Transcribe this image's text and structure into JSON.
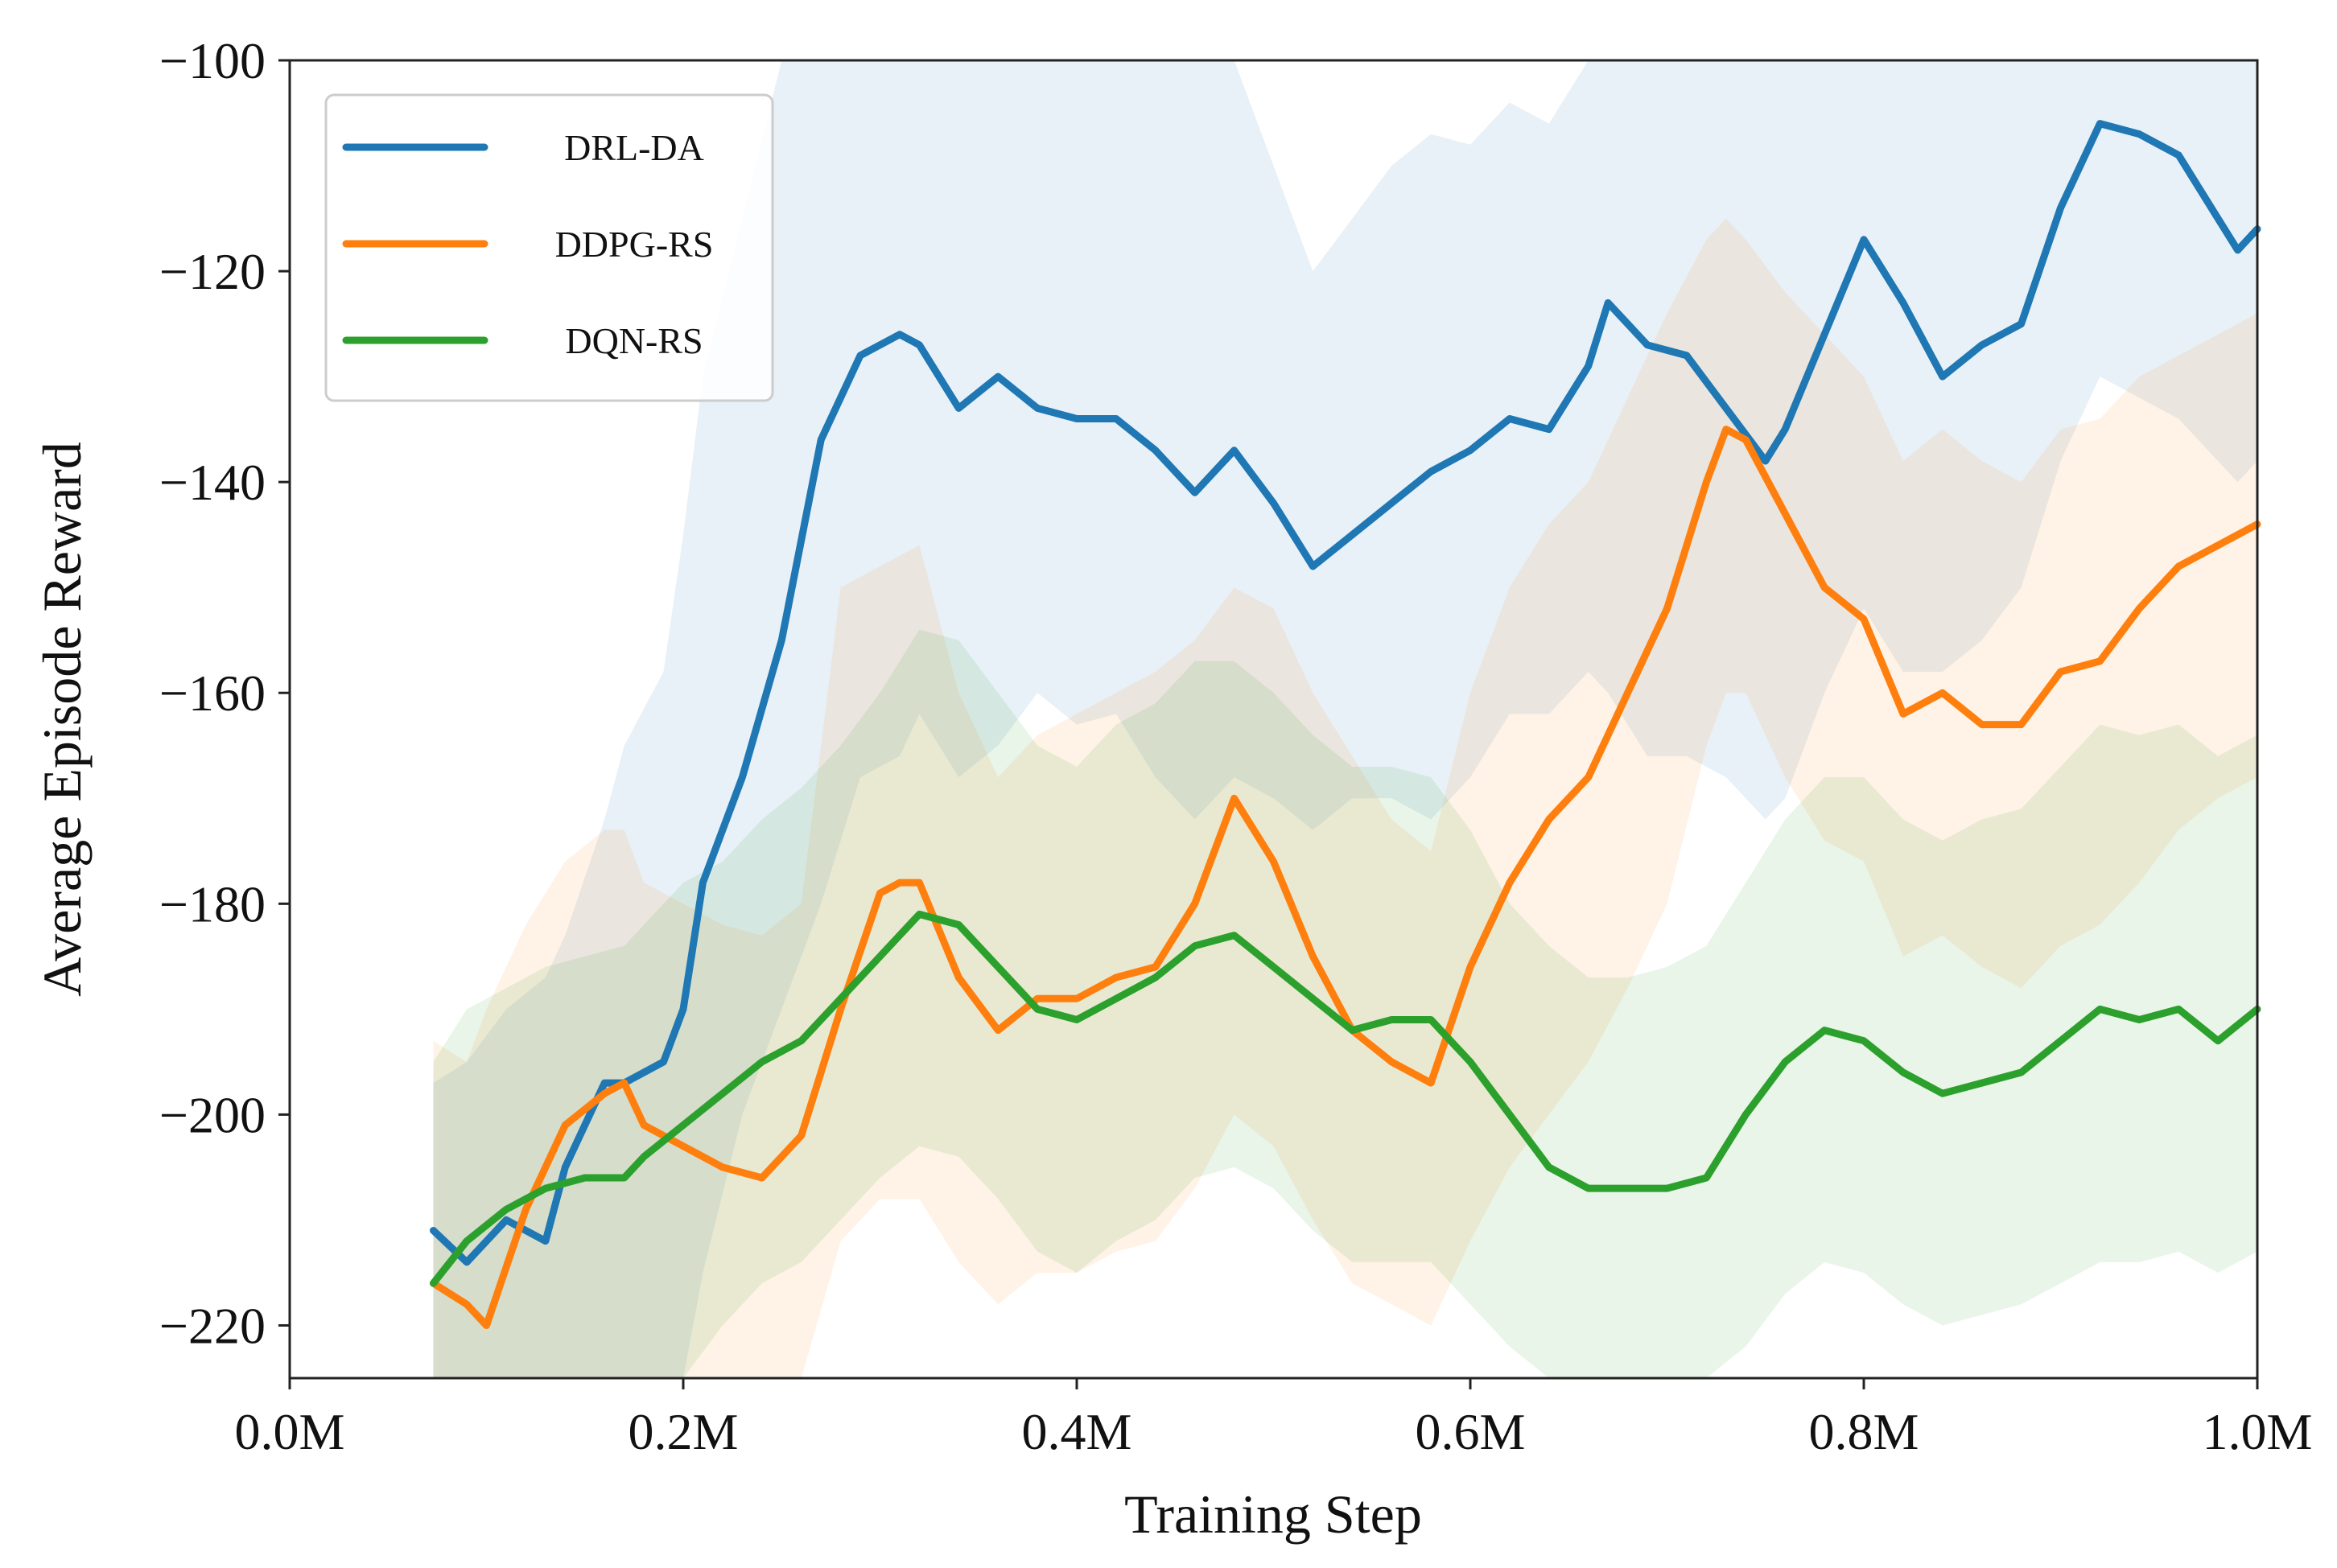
{
  "chart_data": {
    "type": "line",
    "title": "",
    "xlabel": "Training Step",
    "ylabel": "Average Episode Reward",
    "xlim": [
      0.0,
      1.0
    ],
    "ylim": [
      -225,
      -100
    ],
    "x_unit": "M",
    "xticks": [
      0.0,
      0.2,
      0.4,
      0.6,
      0.8,
      1.0
    ],
    "xtick_labels": [
      "0.0M",
      "0.2M",
      "0.4M",
      "0.6M",
      "0.8M",
      "1.0M"
    ],
    "yticks": [
      -100,
      -120,
      -140,
      -160,
      -180,
      -200,
      -220
    ],
    "ytick_labels": [
      "−100",
      "−120",
      "−140",
      "−160",
      "−180",
      "−200",
      "−220"
    ],
    "grid": false,
    "legend_position": "top-left",
    "series": [
      {
        "name": "DRL-DA",
        "color": "#1f77b4",
        "x": [
          0.073,
          0.09,
          0.11,
          0.13,
          0.14,
          0.16,
          0.17,
          0.19,
          0.2,
          0.21,
          0.23,
          0.25,
          0.27,
          0.29,
          0.31,
          0.32,
          0.34,
          0.36,
          0.38,
          0.4,
          0.42,
          0.44,
          0.46,
          0.48,
          0.5,
          0.52,
          0.54,
          0.56,
          0.58,
          0.6,
          0.62,
          0.64,
          0.66,
          0.67,
          0.69,
          0.71,
          0.73,
          0.75,
          0.76,
          0.78,
          0.8,
          0.82,
          0.84,
          0.86,
          0.88,
          0.9,
          0.92,
          0.94,
          0.96,
          0.98,
          0.99,
          1.0
        ],
        "values": [
          -211,
          -214,
          -210,
          -212,
          -205,
          -197,
          -197,
          -195,
          -190,
          -178,
          -168,
          -155,
          -136,
          -128,
          -126,
          -127,
          -133,
          -130,
          -133,
          -134,
          -134,
          -137,
          -141,
          -137,
          -142,
          -148,
          -145,
          -142,
          -139,
          -137,
          -134,
          -135,
          -129,
          -123,
          -127,
          -128,
          -133,
          -138,
          -135,
          -126,
          -117,
          -123,
          -130,
          -127,
          -125,
          -114,
          -106,
          -107,
          -109,
          -115,
          -118,
          -116
        ],
        "band_upper": [
          -197,
          -195,
          -190,
          -187,
          -183,
          -172,
          -165,
          -158,
          -145,
          -130,
          -115,
          -100,
          -100,
          -100,
          -100,
          -100,
          -100,
          -100,
          -100,
          -100,
          -100,
          -100,
          -100,
          -100,
          -110,
          -120,
          -115,
          -110,
          -107,
          -108,
          -104,
          -106,
          -100,
          -100,
          -100,
          -100,
          -100,
          -100,
          -100,
          -100,
          -100,
          -100,
          -100,
          -100,
          -100,
          -100,
          -100,
          -100,
          -100,
          -100,
          -100,
          -100
        ],
        "band_lower": [
          -225,
          -225,
          -225,
          -225,
          -225,
          -225,
          -225,
          -225,
          -225,
          -215,
          -200,
          -190,
          -180,
          -168,
          -166,
          -162,
          -168,
          -165,
          -160,
          -163,
          -162,
          -168,
          -172,
          -168,
          -170,
          -173,
          -170,
          -170,
          -172,
          -168,
          -162,
          -162,
          -158,
          -160,
          -166,
          -166,
          -168,
          -172,
          -170,
          -160,
          -152,
          -158,
          -158,
          -155,
          -150,
          -138,
          -130,
          -132,
          -134,
          -138,
          -140,
          -138
        ]
      },
      {
        "name": "DDPG-RS",
        "color": "#ff7f0e",
        "x": [
          0.073,
          0.09,
          0.1,
          0.12,
          0.14,
          0.16,
          0.17,
          0.18,
          0.2,
          0.22,
          0.24,
          0.26,
          0.28,
          0.3,
          0.31,
          0.32,
          0.34,
          0.36,
          0.38,
          0.4,
          0.42,
          0.44,
          0.46,
          0.48,
          0.5,
          0.52,
          0.54,
          0.56,
          0.58,
          0.6,
          0.62,
          0.64,
          0.66,
          0.68,
          0.7,
          0.72,
          0.73,
          0.74,
          0.76,
          0.78,
          0.8,
          0.82,
          0.84,
          0.86,
          0.88,
          0.9,
          0.92,
          0.94,
          0.96,
          0.98,
          1.0
        ],
        "values": [
          -216,
          -218,
          -220,
          -209,
          -201,
          -198,
          -197,
          -201,
          -203,
          -205,
          -206,
          -202,
          -190,
          -179,
          -178,
          -178,
          -187,
          -192,
          -189,
          -189,
          -187,
          -186,
          -180,
          -170,
          -176,
          -185,
          -192,
          -195,
          -197,
          -186,
          -178,
          -172,
          -168,
          -160,
          -152,
          -140,
          -135,
          -136,
          -143,
          -150,
          -153,
          -162,
          -160,
          -163,
          -163,
          -158,
          -157,
          -152,
          -148,
          -146,
          -144
        ],
        "band_upper": [
          -193,
          -195,
          -190,
          -182,
          -176,
          -173,
          -173,
          -178,
          -180,
          -182,
          -183,
          -180,
          -150,
          -148,
          -147,
          -146,
          -160,
          -168,
          -164,
          -162,
          -160,
          -158,
          -155,
          -150,
          -152,
          -160,
          -166,
          -172,
          -175,
          -160,
          -150,
          -144,
          -140,
          -132,
          -124,
          -117,
          -115,
          -117,
          -122,
          -126,
          -130,
          -138,
          -135,
          -138,
          -140,
          -135,
          -134,
          -130,
          -128,
          -126,
          -124
        ],
        "band_lower": [
          -225,
          -225,
          -225,
          -225,
          -225,
          -225,
          -225,
          -225,
          -225,
          -225,
          -225,
          -225,
          -212,
          -208,
          -208,
          -208,
          -214,
          -218,
          -215,
          -215,
          -213,
          -212,
          -207,
          -200,
          -203,
          -210,
          -216,
          -218,
          -220,
          -212,
          -205,
          -200,
          -195,
          -188,
          -180,
          -165,
          -160,
          -160,
          -168,
          -174,
          -176,
          -185,
          -183,
          -186,
          -188,
          -184,
          -182,
          -178,
          -173,
          -170,
          -168
        ]
      },
      {
        "name": "DQN-RS",
        "color": "#2ca02c",
        "x": [
          0.073,
          0.09,
          0.11,
          0.13,
          0.15,
          0.17,
          0.18,
          0.2,
          0.22,
          0.24,
          0.26,
          0.28,
          0.3,
          0.32,
          0.34,
          0.36,
          0.38,
          0.4,
          0.42,
          0.44,
          0.46,
          0.48,
          0.5,
          0.52,
          0.54,
          0.56,
          0.58,
          0.6,
          0.62,
          0.64,
          0.66,
          0.68,
          0.7,
          0.72,
          0.74,
          0.76,
          0.78,
          0.8,
          0.82,
          0.84,
          0.86,
          0.88,
          0.9,
          0.92,
          0.94,
          0.96,
          0.98,
          1.0
        ],
        "values": [
          -216,
          -212,
          -209,
          -207,
          -206,
          -206,
          -204,
          -201,
          -198,
          -195,
          -193,
          -189,
          -185,
          -181,
          -182,
          -186,
          -190,
          -191,
          -189,
          -187,
          -184,
          -183,
          -186,
          -189,
          -192,
          -191,
          -191,
          -195,
          -200,
          -205,
          -207,
          -207,
          -207,
          -206,
          -200,
          -195,
          -192,
          -193,
          -196,
          -198,
          -197,
          -196,
          -193,
          -190,
          -191,
          -190,
          -193,
          -190
        ],
        "band_upper": [
          -195,
          -190,
          -188,
          -186,
          -185,
          -184,
          -182,
          -178,
          -176,
          -172,
          -169,
          -165,
          -160,
          -154,
          -155,
          -160,
          -165,
          -167,
          -163,
          -161,
          -157,
          -157,
          -160,
          -164,
          -167,
          -167,
          -168,
          -173,
          -180,
          -184,
          -187,
          -187,
          -186,
          -184,
          -178,
          -172,
          -168,
          -168,
          -172,
          -174,
          -172,
          -171,
          -167,
          -163,
          -164,
          -163,
          -166,
          -164
        ],
        "band_lower": [
          -225,
          -225,
          -225,
          -225,
          -225,
          -225,
          -225,
          -225,
          -220,
          -216,
          -214,
          -210,
          -206,
          -203,
          -204,
          -208,
          -213,
          -215,
          -212,
          -210,
          -206,
          -205,
          -207,
          -211,
          -214,
          -214,
          -214,
          -218,
          -222,
          -225,
          -225,
          -225,
          -225,
          -225,
          -222,
          -217,
          -214,
          -215,
          -218,
          -220,
          -219,
          -218,
          -216,
          -214,
          -214,
          -213,
          -215,
          -213
        ]
      }
    ]
  }
}
